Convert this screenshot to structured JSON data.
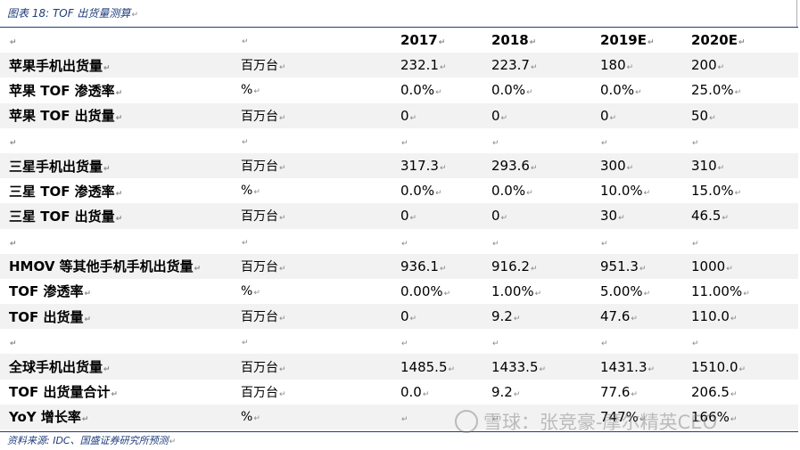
{
  "caption": "图表 18:  TOF 出货量测算",
  "header": {
    "name": "",
    "unit": "",
    "years": [
      "2017",
      "2018",
      "2019E",
      "2020E"
    ]
  },
  "rows": [
    {
      "name": "苹果手机出货量",
      "unit": "百万台",
      "values": [
        "232.1",
        "223.7",
        "180",
        "200"
      ]
    },
    {
      "name": "苹果 TOF 渗透率",
      "unit": "%",
      "values": [
        "0.0%",
        "0.0%",
        "0.0%",
        "25.0%"
      ]
    },
    {
      "name": "苹果 TOF 出货量",
      "unit": "百万台",
      "values": [
        "0",
        "0",
        "0",
        "50"
      ]
    },
    {
      "name": "",
      "unit": "",
      "values": [
        "",
        "",
        "",
        ""
      ]
    },
    {
      "name": "三星手机出货量",
      "unit": "百万台",
      "values": [
        "317.3",
        "293.6",
        "300",
        "310"
      ]
    },
    {
      "name": "三星 TOF 渗透率",
      "unit": "%",
      "values": [
        "0.0%",
        "0.0%",
        "10.0%",
        "15.0%"
      ]
    },
    {
      "name": "三星 TOF 出货量",
      "unit": "百万台",
      "values": [
        "0",
        "0",
        "30",
        "46.5"
      ]
    },
    {
      "name": "",
      "unit": "",
      "values": [
        "",
        "",
        "",
        ""
      ]
    },
    {
      "name": "HMOV 等其他手机手机出货量",
      "unit": "百万台",
      "values": [
        "936.1",
        "916.2",
        "951.3",
        "1000"
      ]
    },
    {
      "name": "TOF 渗透率",
      "unit": "%",
      "values": [
        "0.00%",
        "1.00%",
        "5.00%",
        "11.00%"
      ]
    },
    {
      "name": "TOF 出货量",
      "unit": "百万台",
      "values": [
        "0",
        "9.2",
        "47.6",
        "110.0"
      ]
    },
    {
      "name": "",
      "unit": "",
      "values": [
        "",
        "",
        "",
        ""
      ]
    },
    {
      "name": "全球手机出货量",
      "unit": "百万台",
      "values": [
        "1485.5",
        "1433.5",
        "1431.3",
        "1510.0"
      ]
    },
    {
      "name": "TOF 出货量合计",
      "unit": "百万台",
      "values": [
        "0.0",
        "9.2",
        "77.6",
        "206.5"
      ]
    },
    {
      "name": "YoY 增长率",
      "unit": "%",
      "values": [
        "",
        "",
        "747%",
        "166%"
      ]
    }
  ],
  "paragraph_mark": "↵",
  "source": "资料来源:  IDC、国盛证券研究所预测",
  "watermark": "雪球：张竞豪-摩尔精英CEO"
}
